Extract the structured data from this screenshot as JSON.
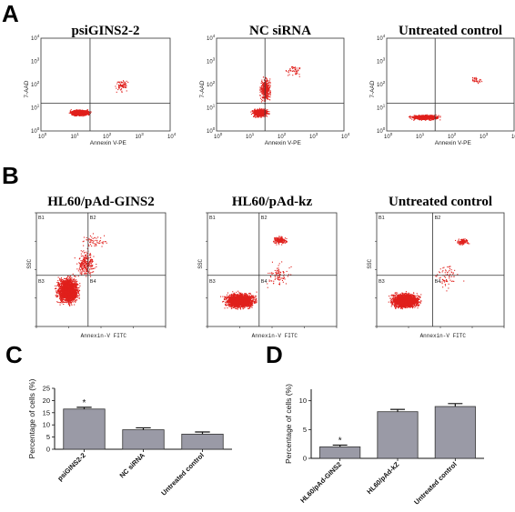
{
  "panel_letters": [
    "A",
    "B",
    "C",
    "D"
  ],
  "chart_data": [
    {
      "type": "scatter",
      "panel": "A",
      "plots": [
        {
          "title": "psiGINS2-2"
        },
        {
          "title": "NC siRNA"
        },
        {
          "title": "Untreated control"
        }
      ],
      "xlabel": "Annexin V-PE",
      "ylabel": "7-AAD",
      "scale": "log",
      "ticks": [
        "10^0",
        "10^1",
        "10^2",
        "10^3",
        "10^4"
      ],
      "tick_base": "10",
      "tick_exponents": [
        "0",
        "1",
        "2",
        "3",
        "4"
      ],
      "xlim": [
        1,
        10000
      ],
      "ylim": [
        1,
        10000
      ],
      "color": "#e0201c"
    },
    {
      "type": "scatter",
      "panel": "B",
      "plots": [
        {
          "title": "HL60/pAd-GINS2"
        },
        {
          "title": "HL60/pAd-kz"
        },
        {
          "title": "Untreated control"
        }
      ],
      "xlabel": "Annexin-V FITC",
      "ylabel": "SSC",
      "quadrants": [
        "B1",
        "B2",
        "B3",
        "B4"
      ],
      "scale": "log",
      "color": "#e0201c"
    },
    {
      "type": "bar",
      "panel": "C",
      "categories": [
        "psiGINS2-2",
        "NC siRNA",
        "Untreated control"
      ],
      "values": [
        16.5,
        8.0,
        6.2
      ],
      "errors": [
        0.7,
        0.8,
        0.9
      ],
      "significance": [
        "*",
        "",
        ""
      ],
      "ylabel": "Percentage of cells (%)",
      "ylim": [
        0,
        25
      ],
      "yticks": [
        "0",
        "5",
        "10",
        "15",
        "20",
        "25"
      ],
      "color": "#9a9aa6"
    },
    {
      "type": "bar",
      "panel": "D",
      "categories": [
        "HL60/pAd-GINS2",
        "HL60/pAd-kZ",
        "Untreated control"
      ],
      "values": [
        2.0,
        8.1,
        9.0
      ],
      "errors": [
        0.3,
        0.4,
        0.5
      ],
      "significance": [
        "*",
        "",
        ""
      ],
      "ylabel": "Percentage of cells (%)",
      "ylim": [
        0,
        12
      ],
      "yticks": [
        "0",
        "5",
        "10"
      ],
      "color": "#9a9aa6"
    }
  ]
}
